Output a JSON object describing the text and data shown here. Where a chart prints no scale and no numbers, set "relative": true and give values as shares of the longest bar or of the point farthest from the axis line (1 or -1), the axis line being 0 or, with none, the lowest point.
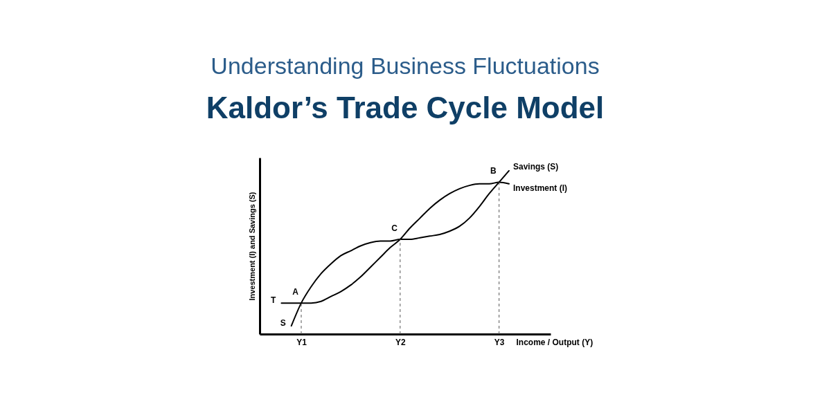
{
  "chart_data": {
    "type": "line",
    "title": "Understanding Business Fluctuations",
    "subtitle": "Kaldor’s Trade Cycle Model",
    "xlabel": "Income / Output (Y)",
    "ylabel": "Investment (I) and Savings (S)",
    "relative": true,
    "legend": false,
    "grid": false,
    "line_style": "solid",
    "categories": [
      null,
      null,
      null,
      null,
      "Y1",
      null,
      null,
      null,
      null,
      null,
      null,
      null,
      null,
      null,
      "Y2",
      null,
      null,
      null,
      null,
      null,
      null,
      null,
      null,
      null,
      "Y3",
      null,
      null,
      null,
      null,
      null
    ],
    "series": [
      {
        "name": "Savings (S)",
        "color": "#000000",
        "values": [
          null,
          null,
          null,
          0.05,
          0.19,
          0.29,
          0.37,
          0.43,
          0.48,
          0.51,
          0.54,
          0.56,
          0.57,
          0.57,
          0.58,
          0.58,
          0.59,
          0.6,
          0.61,
          0.63,
          0.66,
          0.71,
          0.78,
          0.86,
          0.93,
          1,
          null,
          null,
          null,
          null
        ]
      },
      {
        "name": "Investment (I)",
        "color": "#000000",
        "values": [
          null,
          null,
          0.19,
          0.19,
          0.19,
          0.19,
          0.2,
          0.23,
          0.26,
          0.3,
          0.35,
          0.41,
          0.47,
          0.53,
          0.58,
          0.65,
          0.71,
          0.77,
          0.82,
          0.86,
          0.89,
          0.91,
          0.92,
          0.92,
          0.93,
          0.92,
          null,
          null,
          null,
          null
        ]
      }
    ],
    "ref_lines": [
      {
        "axis": "x",
        "value": "Y1",
        "line_style": "dashed"
      },
      {
        "axis": "x",
        "value": "Y2",
        "line_style": "dashed"
      },
      {
        "axis": "x",
        "value": "Y3",
        "line_style": "dashed"
      }
    ],
    "annotations": [
      {
        "text": "A",
        "x": "Y1",
        "y": 0.19
      },
      {
        "text": "C",
        "x": "Y2",
        "y": 0.58
      },
      {
        "text": "B",
        "x": "Y3",
        "y": 0.93
      },
      "S",
      "T"
    ]
  }
}
